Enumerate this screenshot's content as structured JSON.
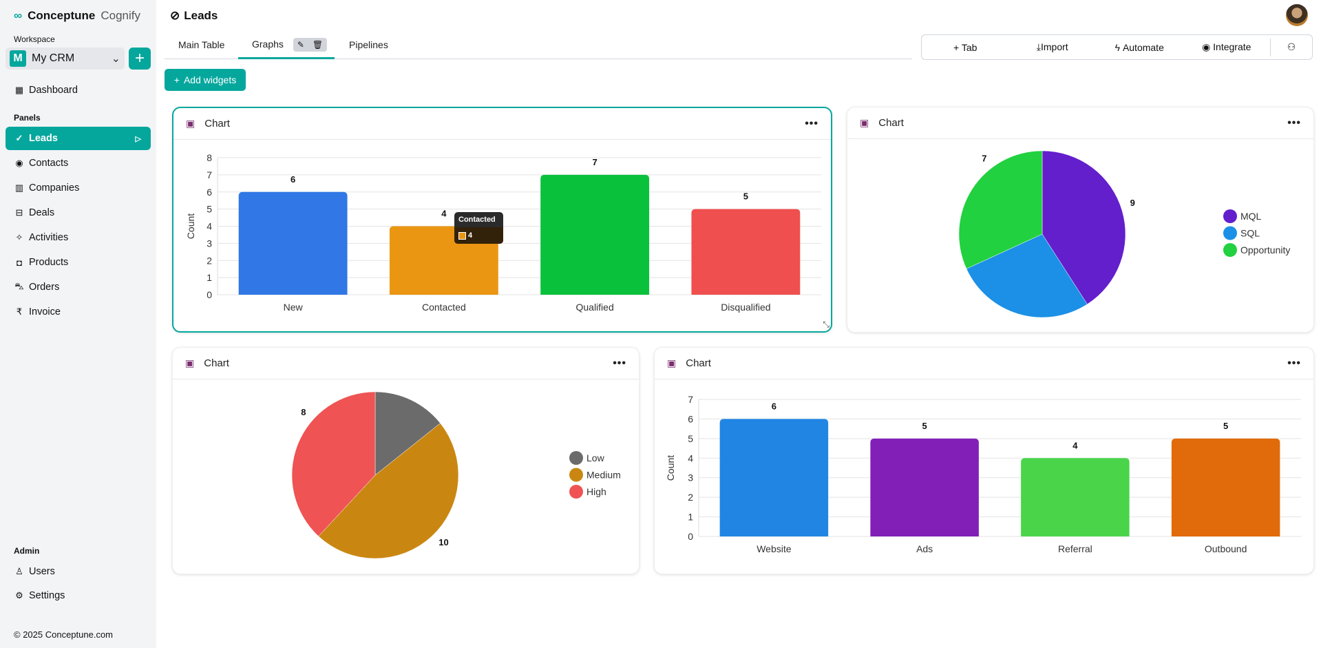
{
  "brand": {
    "name": "Conceptune",
    "sub": "Cognify"
  },
  "sidebar": {
    "workspace_label": "Workspace",
    "workspace": {
      "initial": "M",
      "name": "My CRM"
    },
    "dashboard": "Dashboard",
    "panels_label": "Panels",
    "items": [
      {
        "label": "Leads",
        "icon": "check-badge-icon"
      },
      {
        "label": "Contacts",
        "icon": "user-circle-icon"
      },
      {
        "label": "Companies",
        "icon": "building-icon"
      },
      {
        "label": "Deals",
        "icon": "briefcase-icon"
      },
      {
        "label": "Activities",
        "icon": "pin-icon"
      },
      {
        "label": "Products",
        "icon": "product-icon"
      },
      {
        "label": "Orders",
        "icon": "cart-icon"
      },
      {
        "label": "Invoice",
        "icon": "rupee-icon"
      }
    ],
    "admin_label": "Admin",
    "admin_items": [
      {
        "label": "Users"
      },
      {
        "label": "Settings"
      }
    ],
    "copyright": "© 2025 Conceptune.com"
  },
  "header": {
    "title": "Leads",
    "tabs": [
      "Main Table",
      "Graphs",
      "Pipelines"
    ],
    "active_tab": "Graphs",
    "toolbar": [
      "Tab",
      "Import",
      "Automate",
      "Integrate"
    ],
    "add_widgets": "Add widgets"
  },
  "colors": {
    "accent": "#05a79d"
  },
  "cards": [
    {
      "title": "Chart"
    },
    {
      "title": "Chart"
    },
    {
      "title": "Chart"
    },
    {
      "title": "Chart"
    }
  ],
  "tooltip": {
    "title": "Contacted",
    "value": "4"
  },
  "chart_data": [
    {
      "type": "bar",
      "categories": [
        "New",
        "Contacted",
        "Qualified",
        "Disqualified"
      ],
      "values": [
        6,
        4,
        7,
        5
      ],
      "colors": [
        "#3178e6",
        "#ea9612",
        "#0ac13c",
        "#ef4f4f"
      ],
      "ylabel": "Count",
      "ylim": [
        0,
        8
      ],
      "yticks": [
        0,
        1,
        2,
        3,
        4,
        5,
        6,
        7,
        8
      ],
      "grid": true
    },
    {
      "type": "pie",
      "categories": [
        "MQL",
        "SQL",
        "Opportunity"
      ],
      "values": [
        9,
        6,
        7
      ],
      "label_shown": [
        true,
        false,
        true
      ],
      "colors": [
        "#631fcc",
        "#1b90e6",
        "#21d13f"
      ],
      "legend": "right"
    },
    {
      "type": "pie",
      "categories": [
        "Low",
        "Medium",
        "High"
      ],
      "values": [
        3,
        10,
        8
      ],
      "label_shown": [
        false,
        true,
        true
      ],
      "colors": [
        "#6b6b6b",
        "#c98712",
        "#ef5353"
      ],
      "legend": "right"
    },
    {
      "type": "bar",
      "categories": [
        "Website",
        "Ads",
        "Referral",
        "Outbound"
      ],
      "values": [
        6,
        5,
        4,
        5
      ],
      "colors": [
        "#2186e3",
        "#811fb7",
        "#4ad44a",
        "#e16a0a"
      ],
      "ylabel": "Count",
      "ylim": [
        0,
        7
      ],
      "yticks": [
        0,
        1,
        2,
        3,
        4,
        5,
        6,
        7
      ],
      "grid": true
    }
  ]
}
